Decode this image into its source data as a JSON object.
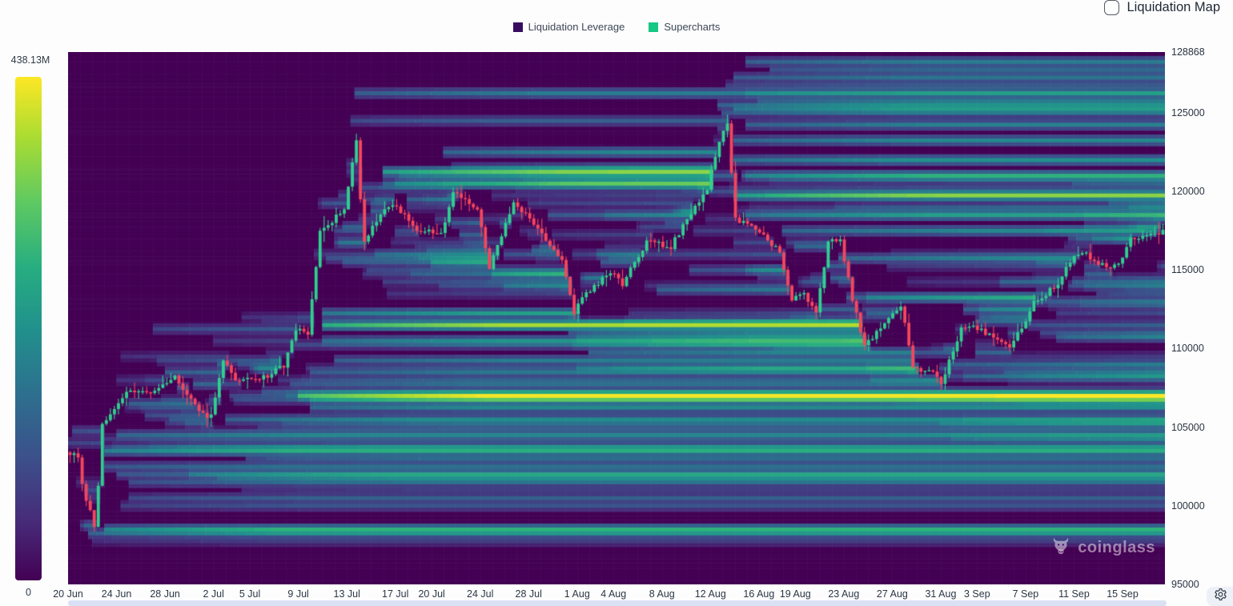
{
  "header": {
    "checkbox_label": "Liquidation Map",
    "checkbox_checked": false
  },
  "legend": {
    "items": [
      {
        "label": "Liquidation Leverage",
        "color": "#380d61"
      },
      {
        "label": "Supercharts",
        "color": "#17c784"
      }
    ]
  },
  "colorbar": {
    "max_label": "438.13M",
    "min_label": "0",
    "colormap": "viridis"
  },
  "watermark": {
    "text": "coinglass"
  },
  "chart_data": {
    "type": "heatmap",
    "title": "Liquidation Heatmap (Liquidation Leverage over price/time with price candles)",
    "days_total": 90.5,
    "y_axis": {
      "min": 95000,
      "max": 128868,
      "ticks": [
        128868,
        125000,
        120000,
        115000,
        110000,
        105000,
        100000,
        95000
      ]
    },
    "x_axis": {
      "ticks": [
        {
          "label": "20 Jun",
          "day": 0
        },
        {
          "label": "24 Jun",
          "day": 4
        },
        {
          "label": "28 Jun",
          "day": 8
        },
        {
          "label": "2 Jul",
          "day": 12
        },
        {
          "label": "5 Jul",
          "day": 15
        },
        {
          "label": "9 Jul",
          "day": 19
        },
        {
          "label": "13 Jul",
          "day": 23
        },
        {
          "label": "17 Jul",
          "day": 27
        },
        {
          "label": "20 Jul",
          "day": 30
        },
        {
          "label": "24 Jul",
          "day": 34
        },
        {
          "label": "28 Jul",
          "day": 38
        },
        {
          "label": "1 Aug",
          "day": 42
        },
        {
          "label": "4 Aug",
          "day": 45
        },
        {
          "label": "8 Aug",
          "day": 49
        },
        {
          "label": "12 Aug",
          "day": 53
        },
        {
          "label": "16 Aug",
          "day": 57
        },
        {
          "label": "19 Aug",
          "day": 60
        },
        {
          "label": "23 Aug",
          "day": 64
        },
        {
          "label": "27 Aug",
          "day": 68
        },
        {
          "label": "31 Aug",
          "day": 72
        },
        {
          "label": "3 Sep",
          "day": 75
        },
        {
          "label": "7 Sep",
          "day": 79
        },
        {
          "label": "11 Sep",
          "day": 83
        },
        {
          "label": "15 Sep",
          "day": 87
        }
      ]
    },
    "colorbar": {
      "min_label": "0",
      "max_label": "438.13M"
    },
    "candles": {
      "per_day": 3,
      "up_color": "#2fd08f",
      "down_color": "#f6465d",
      "price_keyframes": [
        [
          0,
          103400
        ],
        [
          1,
          103200
        ],
        [
          1.5,
          100600
        ],
        [
          2,
          99600
        ],
        [
          2.4,
          98400
        ],
        [
          3,
          105100
        ],
        [
          5,
          107200
        ],
        [
          7,
          107100
        ],
        [
          9,
          108300
        ],
        [
          11,
          105900
        ],
        [
          12,
          105700
        ],
        [
          13,
          109400
        ],
        [
          14,
          108100
        ],
        [
          16,
          108000
        ],
        [
          18,
          108900
        ],
        [
          19,
          111200
        ],
        [
          20,
          110900
        ],
        [
          21,
          117400
        ],
        [
          23,
          118900
        ],
        [
          24,
          123200
        ],
        [
          24.6,
          116600
        ],
        [
          26,
          118700
        ],
        [
          27,
          119200
        ],
        [
          29,
          117600
        ],
        [
          31,
          117300
        ],
        [
          32,
          119900
        ],
        [
          34,
          118900
        ],
        [
          35,
          115100
        ],
        [
          37,
          119300
        ],
        [
          39,
          117600
        ],
        [
          41,
          115700
        ],
        [
          42,
          112300
        ],
        [
          43,
          113500
        ],
        [
          45,
          114900
        ],
        [
          46,
          114100
        ],
        [
          48,
          116800
        ],
        [
          50,
          116500
        ],
        [
          52,
          119000
        ],
        [
          53,
          120200
        ],
        [
          54,
          123300
        ],
        [
          54.7,
          124400
        ],
        [
          55.3,
          118200
        ],
        [
          57,
          117600
        ],
        [
          59,
          116200
        ],
        [
          60,
          113100
        ],
        [
          61,
          113400
        ],
        [
          62,
          112400
        ],
        [
          63,
          116800
        ],
        [
          64,
          116900
        ],
        [
          65,
          113200
        ],
        [
          66,
          110200
        ],
        [
          68,
          111800
        ],
        [
          69,
          112800
        ],
        [
          70,
          108900
        ],
        [
          72,
          108300
        ],
        [
          72.4,
          107600
        ],
        [
          73,
          109300
        ],
        [
          74,
          111200
        ],
        [
          75,
          111500
        ],
        [
          77,
          110500
        ],
        [
          78,
          110200
        ],
        [
          79,
          111300
        ],
        [
          80,
          112900
        ],
        [
          82,
          114100
        ],
        [
          83,
          115600
        ],
        [
          84,
          116200
        ],
        [
          86,
          115100
        ],
        [
          87,
          115400
        ],
        [
          88,
          116900
        ],
        [
          90.5,
          117400
        ]
      ]
    },
    "liquidity_bands": [
      [
        98450,
        3,
        3.2
      ],
      [
        103600,
        3,
        3.0
      ],
      [
        104500,
        4,
        1.6
      ],
      [
        102600,
        3,
        1.1
      ],
      [
        102100,
        4,
        1.0
      ],
      [
        101400,
        5,
        0.85
      ],
      [
        100600,
        5,
        0.7
      ],
      [
        106400,
        5,
        1.4
      ],
      [
        105600,
        13,
        1.5
      ],
      [
        107600,
        9,
        1.0
      ],
      [
        106950,
        19,
        6.5
      ],
      [
        106650,
        20,
        2.4
      ],
      [
        106300,
        20,
        1.8
      ],
      [
        111450,
        21,
        7.0
      ],
      [
        112150,
        21,
        2.6
      ],
      [
        110400,
        21,
        2.0
      ],
      [
        109300,
        22,
        1.4
      ],
      [
        108600,
        20,
        1.2
      ],
      [
        121200,
        26,
        5.5
      ],
      [
        120400,
        27,
        2.2
      ],
      [
        122400,
        31,
        1.7
      ],
      [
        119500,
        28,
        1.5
      ],
      [
        115600,
        30,
        2.8
      ],
      [
        114700,
        35,
        3.2
      ],
      [
        113900,
        36,
        1.6
      ],
      [
        108700,
        42,
        1.8
      ],
      [
        109700,
        43,
        1.5
      ],
      [
        110800,
        42,
        1.3
      ],
      [
        119700,
        55,
        5.0
      ],
      [
        118400,
        56,
        2.2
      ],
      [
        121000,
        56,
        2.0
      ],
      [
        122000,
        55,
        1.8
      ],
      [
        123200,
        55,
        1.7
      ],
      [
        124300,
        56,
        1.5
      ],
      [
        125300,
        55,
        1.9
      ],
      [
        126300,
        56,
        1.3
      ],
      [
        127300,
        55,
        1.2
      ],
      [
        128200,
        56,
        1.4
      ],
      [
        125800,
        57,
        1.0
      ],
      [
        127800,
        58,
        0.9
      ],
      [
        117600,
        59,
        1.7
      ],
      [
        116500,
        60,
        1.5
      ],
      [
        113300,
        66,
        1.9
      ],
      [
        112300,
        66,
        1.4
      ],
      [
        105300,
        72,
        1.3
      ],
      [
        104300,
        73,
        0.9
      ],
      [
        109800,
        75,
        1.5
      ],
      [
        108900,
        73,
        1.3
      ],
      [
        108200,
        74,
        1.1
      ],
      [
        112500,
        74,
        1.5
      ],
      [
        111800,
        75,
        1.2
      ],
      [
        113600,
        80,
        1.4
      ],
      [
        112900,
        80,
        1.1
      ],
      [
        114800,
        84,
        1.3
      ],
      [
        114100,
        84,
        1.0
      ],
      [
        118600,
        84,
        1.3
      ],
      [
        119200,
        86,
        1.1
      ],
      [
        120600,
        83,
        0.9
      ]
    ]
  }
}
